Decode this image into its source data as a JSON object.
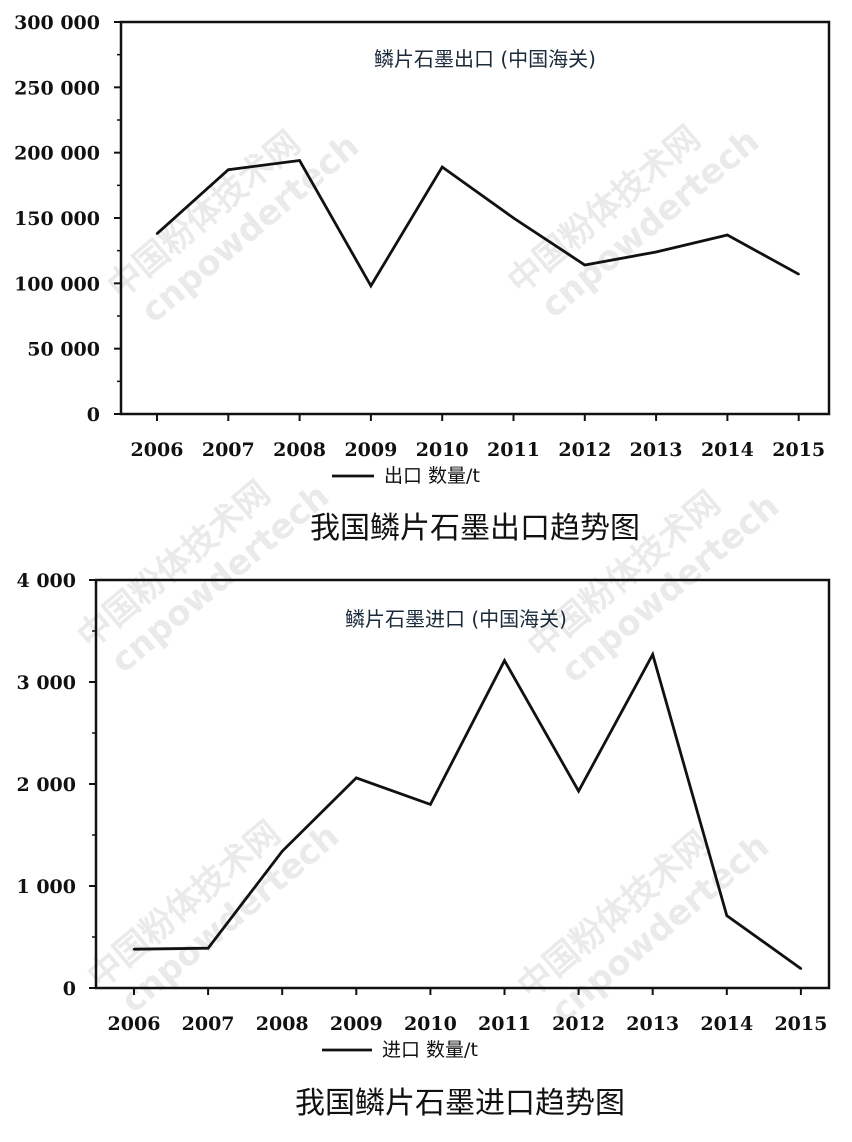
{
  "watermark": {
    "line1": "中国粉体技术网",
    "line2": "cnpowdertech"
  },
  "chart_data": [
    {
      "type": "line",
      "title": "鳞片石墨出口 (中国海关)",
      "caption": "我国鳞片石墨出口趋势图",
      "categories": [
        "2006",
        "2007",
        "2008",
        "2009",
        "2010",
        "2011",
        "2012",
        "2013",
        "2014",
        "2015"
      ],
      "series": [
        {
          "name": "出口 数量/t",
          "values": [
            138000,
            187000,
            194000,
            98000,
            189000,
            150000,
            114000,
            124000,
            137000,
            107000
          ]
        }
      ],
      "ylim": [
        0,
        300000
      ],
      "yticks": [
        0,
        50000,
        100000,
        150000,
        200000,
        250000,
        300000
      ],
      "ytick_labels": [
        "0",
        "50 000",
        "100 000",
        "150 000",
        "200 000",
        "250 000",
        "300 000"
      ],
      "legend_position": "bottom",
      "line_color": "#111111"
    },
    {
      "type": "line",
      "title": "鳞片石墨进口 (中国海关)",
      "caption": "我国鳞片石墨进口趋势图",
      "categories": [
        "2006",
        "2007",
        "2008",
        "2009",
        "2010",
        "2011",
        "2012",
        "2013",
        "2014",
        "2015"
      ],
      "series": [
        {
          "name": "进口 数量/t",
          "values": [
            380,
            390,
            1340,
            2060,
            1800,
            3210,
            1930,
            3270,
            710,
            190
          ]
        }
      ],
      "ylim": [
        0,
        4000
      ],
      "yticks": [
        0,
        1000,
        2000,
        3000,
        4000
      ],
      "ytick_labels": [
        "0",
        "1 000",
        "2 000",
        "3 000",
        "4 000"
      ],
      "legend_position": "bottom",
      "line_color": "#111111"
    }
  ]
}
